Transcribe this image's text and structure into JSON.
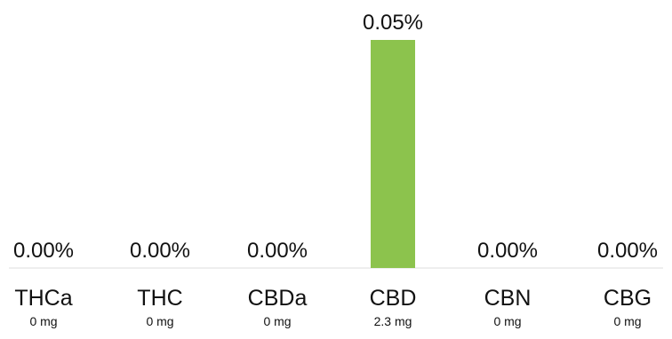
{
  "chart_data": {
    "type": "bar",
    "categories": [
      "THCa",
      "THC",
      "CBDa",
      "CBD",
      "CBN",
      "CBG"
    ],
    "amounts": [
      "0 mg",
      "0 mg",
      "0 mg",
      "2.3 mg",
      "0 mg",
      "0 mg"
    ],
    "values": [
      0.0,
      0.0,
      0.0,
      0.05,
      0.0,
      0.0
    ],
    "value_labels": [
      "0.00%",
      "0.00%",
      "0.00%",
      "0.05%",
      "0.00%",
      "0.00%"
    ],
    "ylim": [
      0,
      0.05
    ],
    "unit": "%",
    "grid": false,
    "legend": "none",
    "bar_color": "#8cc34d",
    "text_color": "#111111",
    "baseline_color": "#dddddd"
  }
}
